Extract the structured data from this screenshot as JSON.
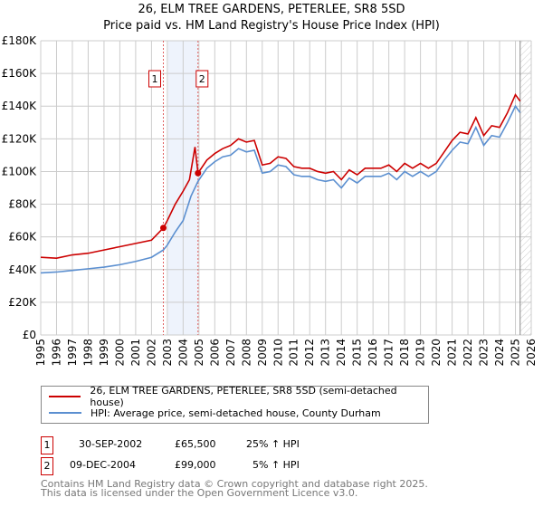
{
  "title": "26, ELM TREE GARDENS, PETERLEE, SR8 5SD",
  "subtitle": "Price paid vs. HM Land Registry's House Price Index (HPI)",
  "chart_data": {
    "type": "line",
    "xlim": [
      1995,
      2026
    ],
    "ylim": [
      0,
      180000
    ],
    "x_ticks": [
      "1995",
      "1996",
      "1997",
      "1998",
      "1999",
      "2000",
      "2001",
      "2002",
      "2003",
      "2004",
      "2005",
      "2006",
      "2007",
      "2008",
      "2009",
      "2010",
      "2011",
      "2012",
      "2013",
      "2014",
      "2015",
      "2016",
      "2017",
      "2018",
      "2019",
      "2020",
      "2021",
      "2022",
      "2023",
      "2024",
      "2025",
      "2026"
    ],
    "y_ticks": [
      "£0",
      "£20K",
      "£40K",
      "£60K",
      "£80K",
      "£100K",
      "£120K",
      "£140K",
      "£160K",
      "£180K"
    ],
    "colors": {
      "property": "#cc0000",
      "hpi": "#5b8fd0"
    },
    "series": [
      {
        "name": "26, ELM TREE GARDENS, PETERLEE, SR8 5SD (semi-detached house)",
        "x": [
          1995,
          1996,
          1997,
          1998,
          1999,
          2000,
          2001,
          2002,
          2002.75,
          2003,
          2003.5,
          2004,
          2004.4,
          2004.75,
          2004.94,
          2005.5,
          2006,
          2006.5,
          2007,
          2007.5,
          2008,
          2008.5,
          2009,
          2009.5,
          2010,
          2010.5,
          2011,
          2011.5,
          2012,
          2012.5,
          2013,
          2013.5,
          2014,
          2014.5,
          2015,
          2015.5,
          2016,
          2016.5,
          2017,
          2017.5,
          2018,
          2018.5,
          2019,
          2019.5,
          2020,
          2020.5,
          2021,
          2021.5,
          2022,
          2022.5,
          2023,
          2023.5,
          2024,
          2024.5,
          2025,
          2025.3
        ],
        "y": [
          47500,
          47000,
          49000,
          50000,
          52000,
          54000,
          56000,
          58000,
          65500,
          70000,
          80000,
          88000,
          95000,
          115000,
          99000,
          107000,
          111000,
          114000,
          116000,
          120000,
          118000,
          119000,
          104000,
          105000,
          109000,
          108000,
          103000,
          102000,
          102000,
          100000,
          99000,
          100000,
          95000,
          101000,
          98000,
          102000,
          102000,
          102000,
          104000,
          100000,
          105000,
          102000,
          105000,
          102000,
          105000,
          112000,
          119000,
          124000,
          123000,
          133000,
          122000,
          128000,
          127000,
          136000,
          147000,
          143000
        ]
      },
      {
        "name": "HPI: Average price, semi-detached house, County Durham",
        "x": [
          1995,
          1996,
          1997,
          1998,
          1999,
          2000,
          2001,
          2002,
          2002.75,
          2003,
          2003.5,
          2004,
          2004.5,
          2004.94,
          2005.5,
          2006,
          2006.5,
          2007,
          2007.5,
          2008,
          2008.5,
          2009,
          2009.5,
          2010,
          2010.5,
          2011,
          2011.5,
          2012,
          2012.5,
          2013,
          2013.5,
          2014,
          2014.5,
          2015,
          2015.5,
          2016,
          2016.5,
          2017,
          2017.5,
          2018,
          2018.5,
          2019,
          2019.5,
          2020,
          2020.5,
          2021,
          2021.5,
          2022,
          2022.5,
          2023,
          2023.5,
          2024,
          2024.5,
          2025,
          2025.3
        ],
        "y": [
          38000,
          38500,
          39500,
          40500,
          41500,
          43000,
          45000,
          47500,
          52000,
          55000,
          63000,
          70000,
          85000,
          94000,
          102000,
          106000,
          109000,
          110000,
          114000,
          112000,
          113000,
          99000,
          100000,
          104000,
          103000,
          98000,
          97000,
          97000,
          95000,
          94000,
          95000,
          90000,
          96000,
          93000,
          97000,
          97000,
          97000,
          99000,
          95000,
          100000,
          97000,
          100000,
          97000,
          100000,
          107000,
          113000,
          118000,
          117000,
          127000,
          116000,
          122000,
          121000,
          130000,
          140000,
          136000
        ]
      }
    ],
    "sales": [
      {
        "label": "1",
        "x": 2002.75,
        "y": 65500
      },
      {
        "label": "2",
        "x": 2004.94,
        "y": 99000
      }
    ]
  },
  "legend": {
    "property": "26, ELM TREE GARDENS, PETERLEE, SR8 5SD (semi-detached house)",
    "hpi": "HPI: Average price, semi-detached house, County Durham"
  },
  "table": [
    {
      "num": "1",
      "date": "30-SEP-2002",
      "price": "£65,500",
      "hpi": "25% ↑ HPI"
    },
    {
      "num": "2",
      "date": "09-DEC-2004",
      "price": "£99,000",
      "hpi": "5% ↑ HPI"
    }
  ],
  "footer": [
    "Contains HM Land Registry data © Crown copyright and database right 2025.",
    "This data is licensed under the Open Government Licence v3.0."
  ]
}
